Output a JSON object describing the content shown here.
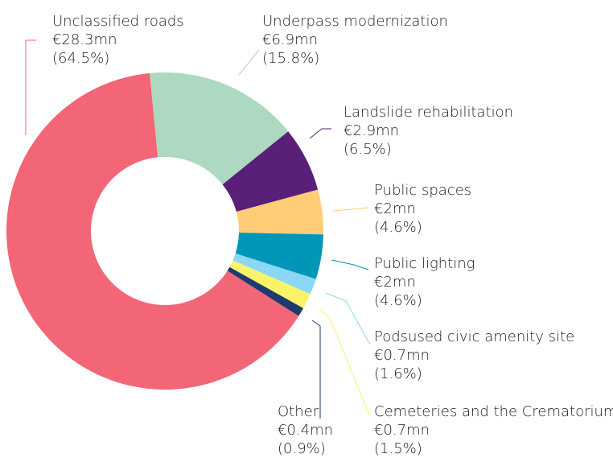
{
  "chart_data": {
    "type": "donut",
    "categories": [
      "Unclassified roads",
      "Underpass modernization",
      "Landslide rehabilitation",
      "Public spaces",
      "Public lighting",
      "Podsused civic amenity site",
      "Cemeteries and the Crematorium",
      "Other"
    ],
    "values": [
      28.3,
      6.9,
      2.9,
      2,
      2,
      0.7,
      0.7,
      0.4
    ],
    "value_labels": [
      "€28.3mn",
      "€6.9mn",
      "€2.9mn",
      "€2mn",
      "€2mn",
      "€0.7mn",
      "€0.7mn",
      "€0.4mn"
    ],
    "percentages": [
      64.5,
      15.8,
      6.5,
      4.6,
      4.6,
      1.6,
      1.5,
      0.9
    ],
    "percentage_labels": [
      "(64.5%)",
      "(15.8%)",
      "(6.5%)",
      "(4.6%)",
      "(4.6%)",
      "(1.6%)",
      "(1.5%)",
      "(0.9%)"
    ],
    "colors": [
      "#f26677",
      "#acd9c0",
      "#5a1f78",
      "#ffcc77",
      "#0096b8",
      "#8ad8f6",
      "#faf36a",
      "#1f3a6e"
    ]
  }
}
